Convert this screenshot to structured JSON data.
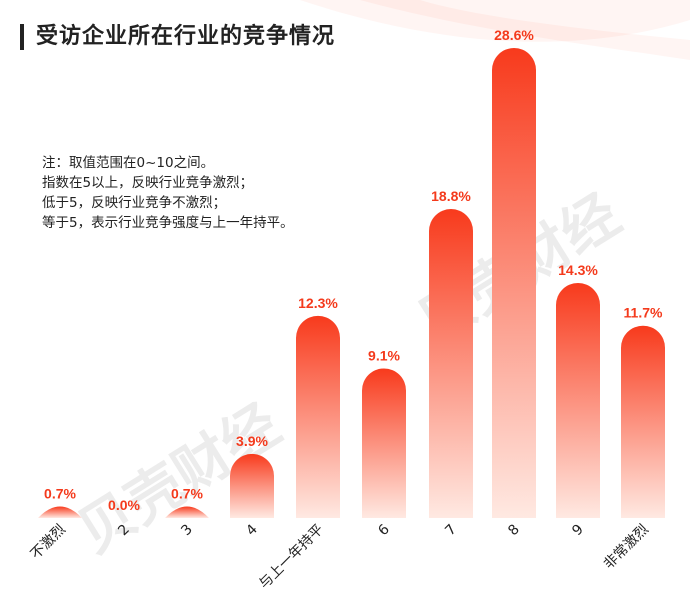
{
  "title": "受访企业所在行业的竞争情况",
  "note_lines": [
    "注：取值范围在0~10之间。",
    "指数在5以上，反映行业竞争激烈；",
    "低于5，反映行业竞争不激烈；",
    "等于5，表示行业竞争强度与上一年持平。"
  ],
  "watermark": "贝壳财经",
  "colors": {
    "bar_top": "#F83A1C",
    "bar_bottom": "#FFE9E2",
    "label": "#F43A1C",
    "text": "#222222"
  },
  "chart_data": {
    "type": "bar",
    "categories": [
      "不激烈",
      "2",
      "3",
      "4",
      "与上一年持平",
      "6",
      "7",
      "8",
      "9",
      "非常激烈"
    ],
    "values": [
      0.7,
      0.0,
      0.7,
      3.9,
      12.3,
      9.1,
      18.8,
      28.6,
      14.3,
      11.7
    ],
    "value_labels": [
      "0.7%",
      "0.0%",
      "0.7%",
      "3.9%",
      "12.3%",
      "9.1%",
      "18.8%",
      "28.6%",
      "14.3%",
      "11.7%"
    ],
    "unit": "%",
    "title": "受访企业所在行业的竞争情况",
    "xlabel": "",
    "ylabel": "",
    "ylim": [
      0,
      28.6
    ],
    "grid": false,
    "legend": "none"
  }
}
